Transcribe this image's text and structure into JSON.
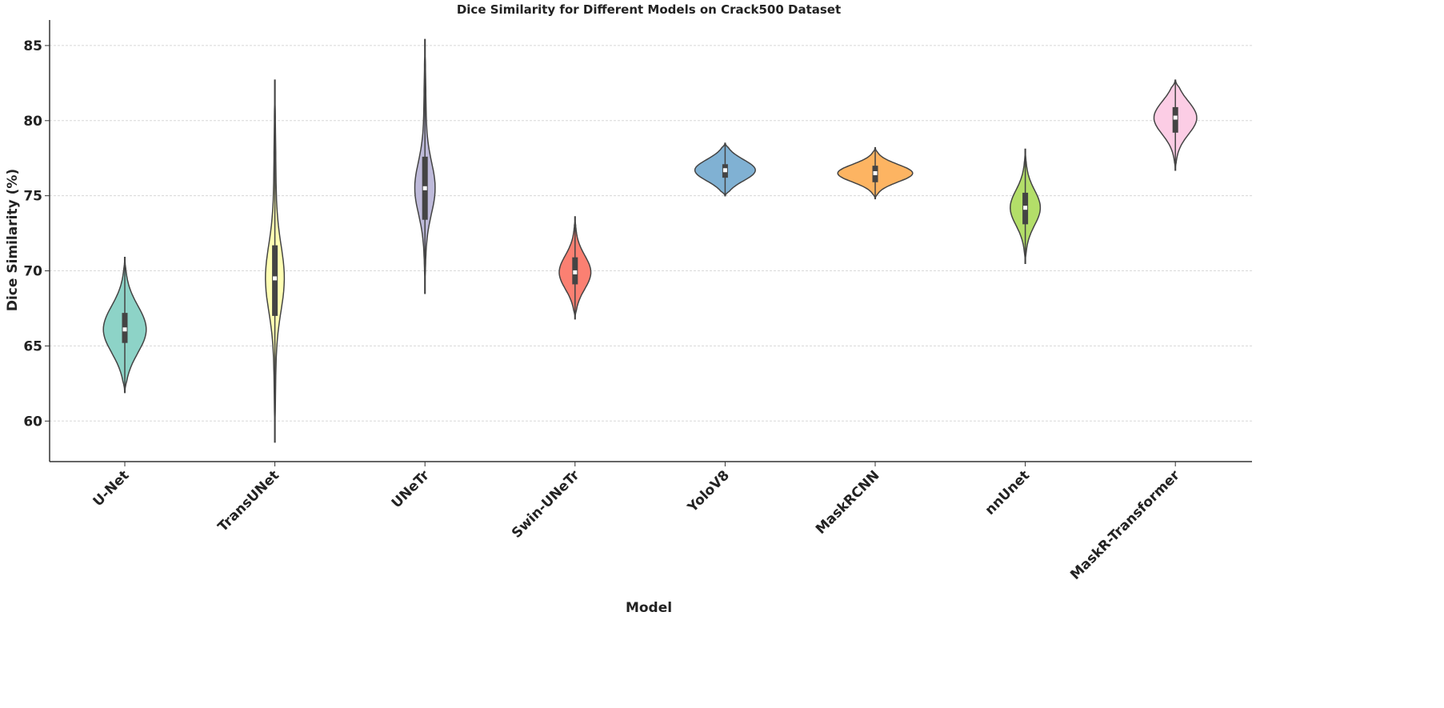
{
  "chart_data": {
    "type": "violin",
    "title": "Dice Similarity for Different Models on Crack500 Dataset",
    "xlabel": "Model",
    "ylabel": "Dice Similarity  (%)",
    "ylim": [
      57.3,
      86.7
    ],
    "yticks": [
      60,
      65,
      70,
      75,
      80,
      85
    ],
    "grid": true,
    "grid_axis": "y",
    "categories": [
      "U-Net",
      "TransUNet",
      "UNeTr",
      "Swin-UNeTr",
      "YoloV8",
      "MaskRCNN",
      "nnUnet",
      "MaskR-Transformer"
    ],
    "series": [
      {
        "category": "U-Net",
        "min": 61.9,
        "q1": 65.2,
        "median": 66.1,
        "q3": 67.2,
        "max": 70.9,
        "color": "#8dd3c7"
      },
      {
        "category": "TransUNet",
        "min": 58.6,
        "q1": 67.0,
        "median": 69.5,
        "q3": 71.7,
        "max": 82.7,
        "color": "#ffffb3"
      },
      {
        "category": "UNeTr",
        "min": 68.5,
        "q1": 73.4,
        "median": 75.5,
        "q3": 77.6,
        "max": 85.4,
        "color": "#bebada"
      },
      {
        "category": "Swin-UNeTr",
        "min": 66.8,
        "q1": 69.1,
        "median": 69.9,
        "q3": 70.9,
        "max": 73.6,
        "color": "#fb8072"
      },
      {
        "category": "YoloV8",
        "min": 75.0,
        "q1": 76.2,
        "median": 76.7,
        "q3": 77.1,
        "max": 78.5,
        "color": "#80b1d3"
      },
      {
        "category": "MaskRCNN",
        "min": 74.8,
        "q1": 75.9,
        "median": 76.5,
        "q3": 77.0,
        "max": 78.2,
        "color": "#fdb462"
      },
      {
        "category": "nnUnet",
        "min": 70.5,
        "q1": 73.1,
        "median": 74.2,
        "q3": 75.2,
        "max": 78.1,
        "color": "#b3de69"
      },
      {
        "category": "MaskR-Transformer",
        "min": 76.7,
        "q1": 79.2,
        "median": 80.2,
        "q3": 80.9,
        "max": 82.7,
        "color": "#fccde5"
      }
    ]
  }
}
